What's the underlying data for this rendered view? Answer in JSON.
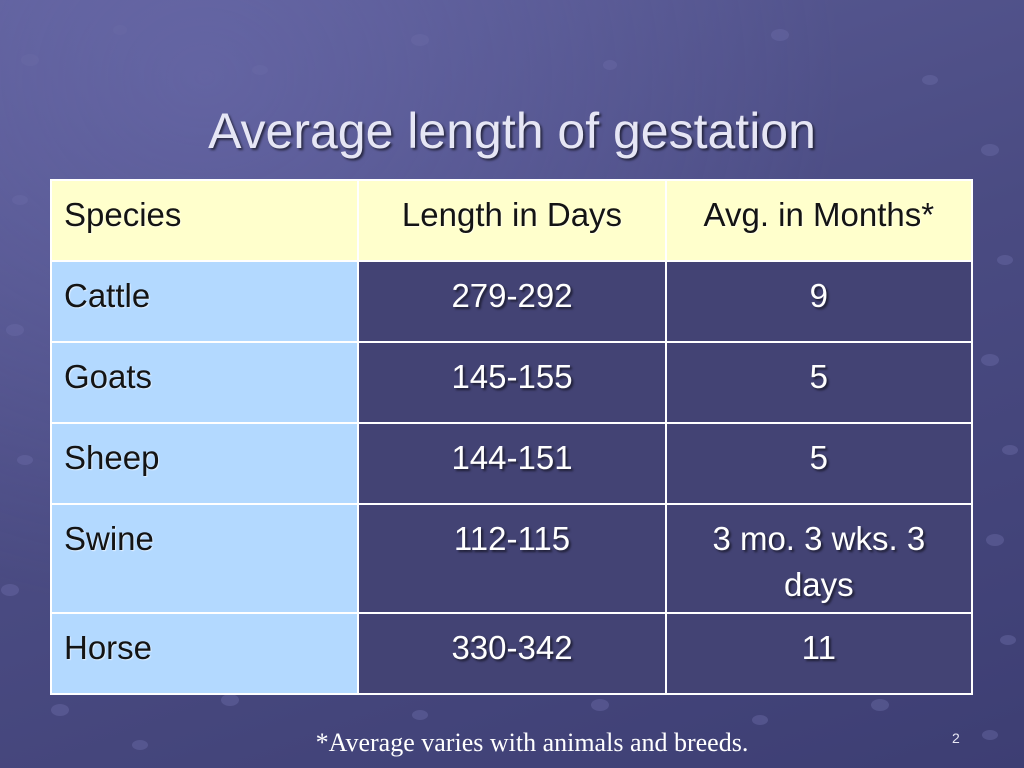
{
  "slide": {
    "title": "Average length of gestation",
    "footnote": "*Average varies with animals and breeds.",
    "page_number": "2"
  },
  "colors": {
    "background": "#4a4b82",
    "header_fill": "#ffffcc",
    "first_column_fill": "#b3d9ff",
    "body_cell_fill": "#434374"
  },
  "table": {
    "headers": [
      "Species",
      "Length  in Days",
      "Avg. in Months*"
    ],
    "rows": [
      [
        "Cattle",
        "279-292",
        "9"
      ],
      [
        "Goats",
        "145-155",
        "5"
      ],
      [
        "Sheep",
        "144-151",
        "5"
      ],
      [
        "Swine",
        "112-115",
        "3 mo. 3 wks. 3 days"
      ],
      [
        "Horse",
        "330-342",
        "11"
      ]
    ]
  }
}
